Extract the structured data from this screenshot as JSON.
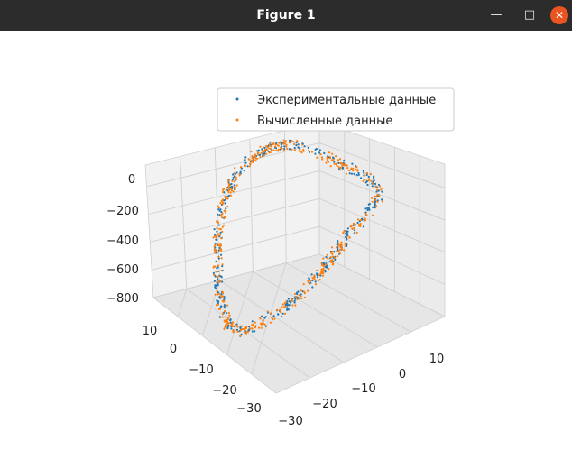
{
  "window": {
    "title": "Figure 1",
    "minimize_icon": "minimize-icon",
    "maximize_icon": "maximize-icon",
    "close_icon": "close-icon",
    "close_color": "#e95420"
  },
  "chart_data": {
    "type": "scatter",
    "projection": "3d",
    "grid": true,
    "legend_position": "upper-right",
    "x_ticks": [
      "−30",
      "−20",
      "−10",
      "0",
      "10"
    ],
    "y_ticks": [
      "−30",
      "−20",
      "−10",
      "0",
      "10"
    ],
    "z_ticks": [
      "−800",
      "−600",
      "−400",
      "−200",
      "0"
    ],
    "xlim": [
      -32,
      16
    ],
    "ylim": [
      -35,
      15
    ],
    "zlim": [
      -840,
      60
    ],
    "series": [
      {
        "name": "Экспериментальные данные",
        "color": "#1f77b4"
      },
      {
        "name": "Вычисленные данные",
        "color": "#ff7f0e"
      }
    ]
  }
}
